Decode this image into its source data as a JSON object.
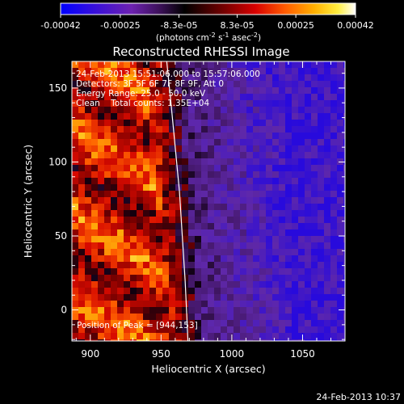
{
  "colorbar": {
    "tick_labels": [
      "-0.00042",
      "-0.00025",
      "-8.3e-05",
      "8.3e-05",
      "0.00025",
      "0.00042"
    ],
    "range": [
      -0.00042,
      0.00042
    ],
    "units_prefix": "(photons cm",
    "units_exp1": "-2",
    "units_mid": " s",
    "units_exp2": "-1",
    "units_mid2": " asec",
    "units_exp3": "-2",
    "units_suffix": ")"
  },
  "chart_data": {
    "type": "heatmap",
    "title": "Reconstructed RHESSI Image",
    "xlabel": "Heliocentric X (arcsec)",
    "ylabel": "Heliocentric Y (arcsec)",
    "xlim": [
      887,
      1080
    ],
    "ylim": [
      -21,
      168
    ],
    "x_ticks": [
      900,
      950,
      1000,
      1050
    ],
    "y_ticks": [
      0,
      50,
      100,
      150
    ],
    "colormap": "red-temperature (blue/purple negative → black zero → red/orange/yellow/white positive)",
    "peak_position": [
      944,
      153
    ],
    "annotations": {
      "time_range": "24-Feb-2013 15:51:06.000 to 15:57:06.000",
      "detectors": "Detectors: 3F 5F 6F 7F 8F 9F, Att 0",
      "energy_range": "Energy Range: 25.0 - 50.0 keV",
      "method_counts": "Clean    Total counts: 1.35E+04",
      "peak_label": "Position of Peak = [944,153]"
    },
    "limb_curve": {
      "x": [
        954,
        957,
        960,
        963,
        965,
        967,
        968,
        969
      ],
      "y": [
        168,
        140,
        110,
        80,
        50,
        20,
        0,
        -21
      ]
    }
  },
  "footer": {
    "timestamp": "24-Feb-2013 10:37"
  }
}
